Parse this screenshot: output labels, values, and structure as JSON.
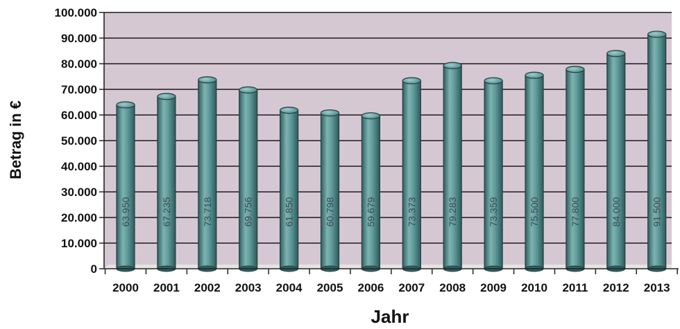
{
  "chart_data": {
    "type": "bar",
    "title": "",
    "xlabel": "Jahr",
    "ylabel": "Betrag in €",
    "categories": [
      "2000",
      "2001",
      "2002",
      "2003",
      "2004",
      "2005",
      "2006",
      "2007",
      "2008",
      "2009",
      "2010",
      "2011",
      "2012",
      "2013"
    ],
    "values": [
      63950,
      67235,
      73718,
      69756,
      61850,
      60798,
      59679,
      73373,
      79283,
      73359,
      75500,
      77800,
      84000,
      91500
    ],
    "data_labels": [
      "63.950",
      "67.235",
      "73.718",
      "69.756",
      "61.850",
      "60.798",
      "59.679",
      "73.373",
      "79.283",
      "73.359",
      "75.500",
      "77.800",
      "84.000",
      "91.500"
    ],
    "yticks": [
      0,
      10000,
      20000,
      30000,
      40000,
      50000,
      60000,
      70000,
      80000,
      90000,
      100000
    ],
    "ytick_labels": [
      "0",
      "10.000",
      "20.000",
      "30.000",
      "40.000",
      "50.000",
      "60.000",
      "70.000",
      "80.000",
      "90.000",
      "100.000"
    ],
    "ylim": [
      0,
      100000
    ],
    "grid": true,
    "legend": "none",
    "colors": {
      "bar": "#5f9a9a",
      "bar_dark": "#2f5f60",
      "bar_light": "#8cc0bd",
      "plot_background": "#d6c8d3",
      "floor": "#e4e4e2",
      "grid": "#1a1a1a"
    }
  }
}
